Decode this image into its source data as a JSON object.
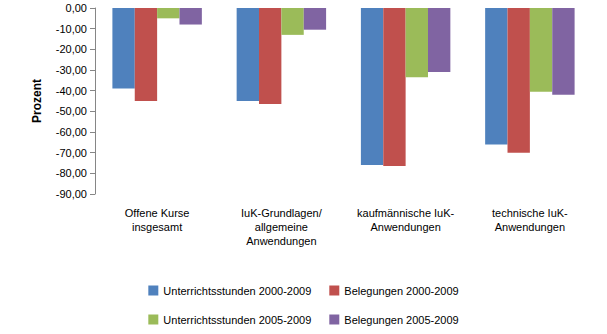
{
  "chart_data": {
    "type": "bar",
    "y_label": "Prozent",
    "categories": [
      "Offene Kurse\ninsgesamt",
      "IuK-Grundlagen/\nallgemeine\nAnwendungen",
      "kaufmännische IuK-\nAnwendungen",
      "technische IuK-\nAnwendungen"
    ],
    "series": [
      {
        "name": "Unterrichtsstunden 2000-2009",
        "color": "#4F81BD",
        "values": [
          -39,
          -45,
          -76,
          -66
        ]
      },
      {
        "name": "Belegungen 2000-2009",
        "color": "#C0504D",
        "values": [
          -45,
          -46.5,
          -76.5,
          -70
        ]
      },
      {
        "name": "Unterrichtsstunden 2005-2009",
        "color": "#9BBB59",
        "values": [
          -5,
          -13,
          -33.5,
          -40.5
        ]
      },
      {
        "name": "Belegungen 2005-2009",
        "color": "#8064A2",
        "values": [
          -8,
          -10.5,
          -31,
          -42
        ]
      }
    ],
    "ylim": [
      -90,
      0
    ],
    "yticks": [
      {
        "value": 0,
        "label": "0,00"
      },
      {
        "value": -10,
        "label": "-10,00"
      },
      {
        "value": -20,
        "label": "-20,00"
      },
      {
        "value": -30,
        "label": "-30,00"
      },
      {
        "value": -40,
        "label": "-40,00"
      },
      {
        "value": -50,
        "label": "-50,00"
      },
      {
        "value": -60,
        "label": "-60,00"
      },
      {
        "value": -70,
        "label": "-70,00"
      },
      {
        "value": -80,
        "label": "-80,00"
      },
      {
        "value": -90,
        "label": "-90,00"
      }
    ],
    "grid": false,
    "legend": "bottom"
  }
}
